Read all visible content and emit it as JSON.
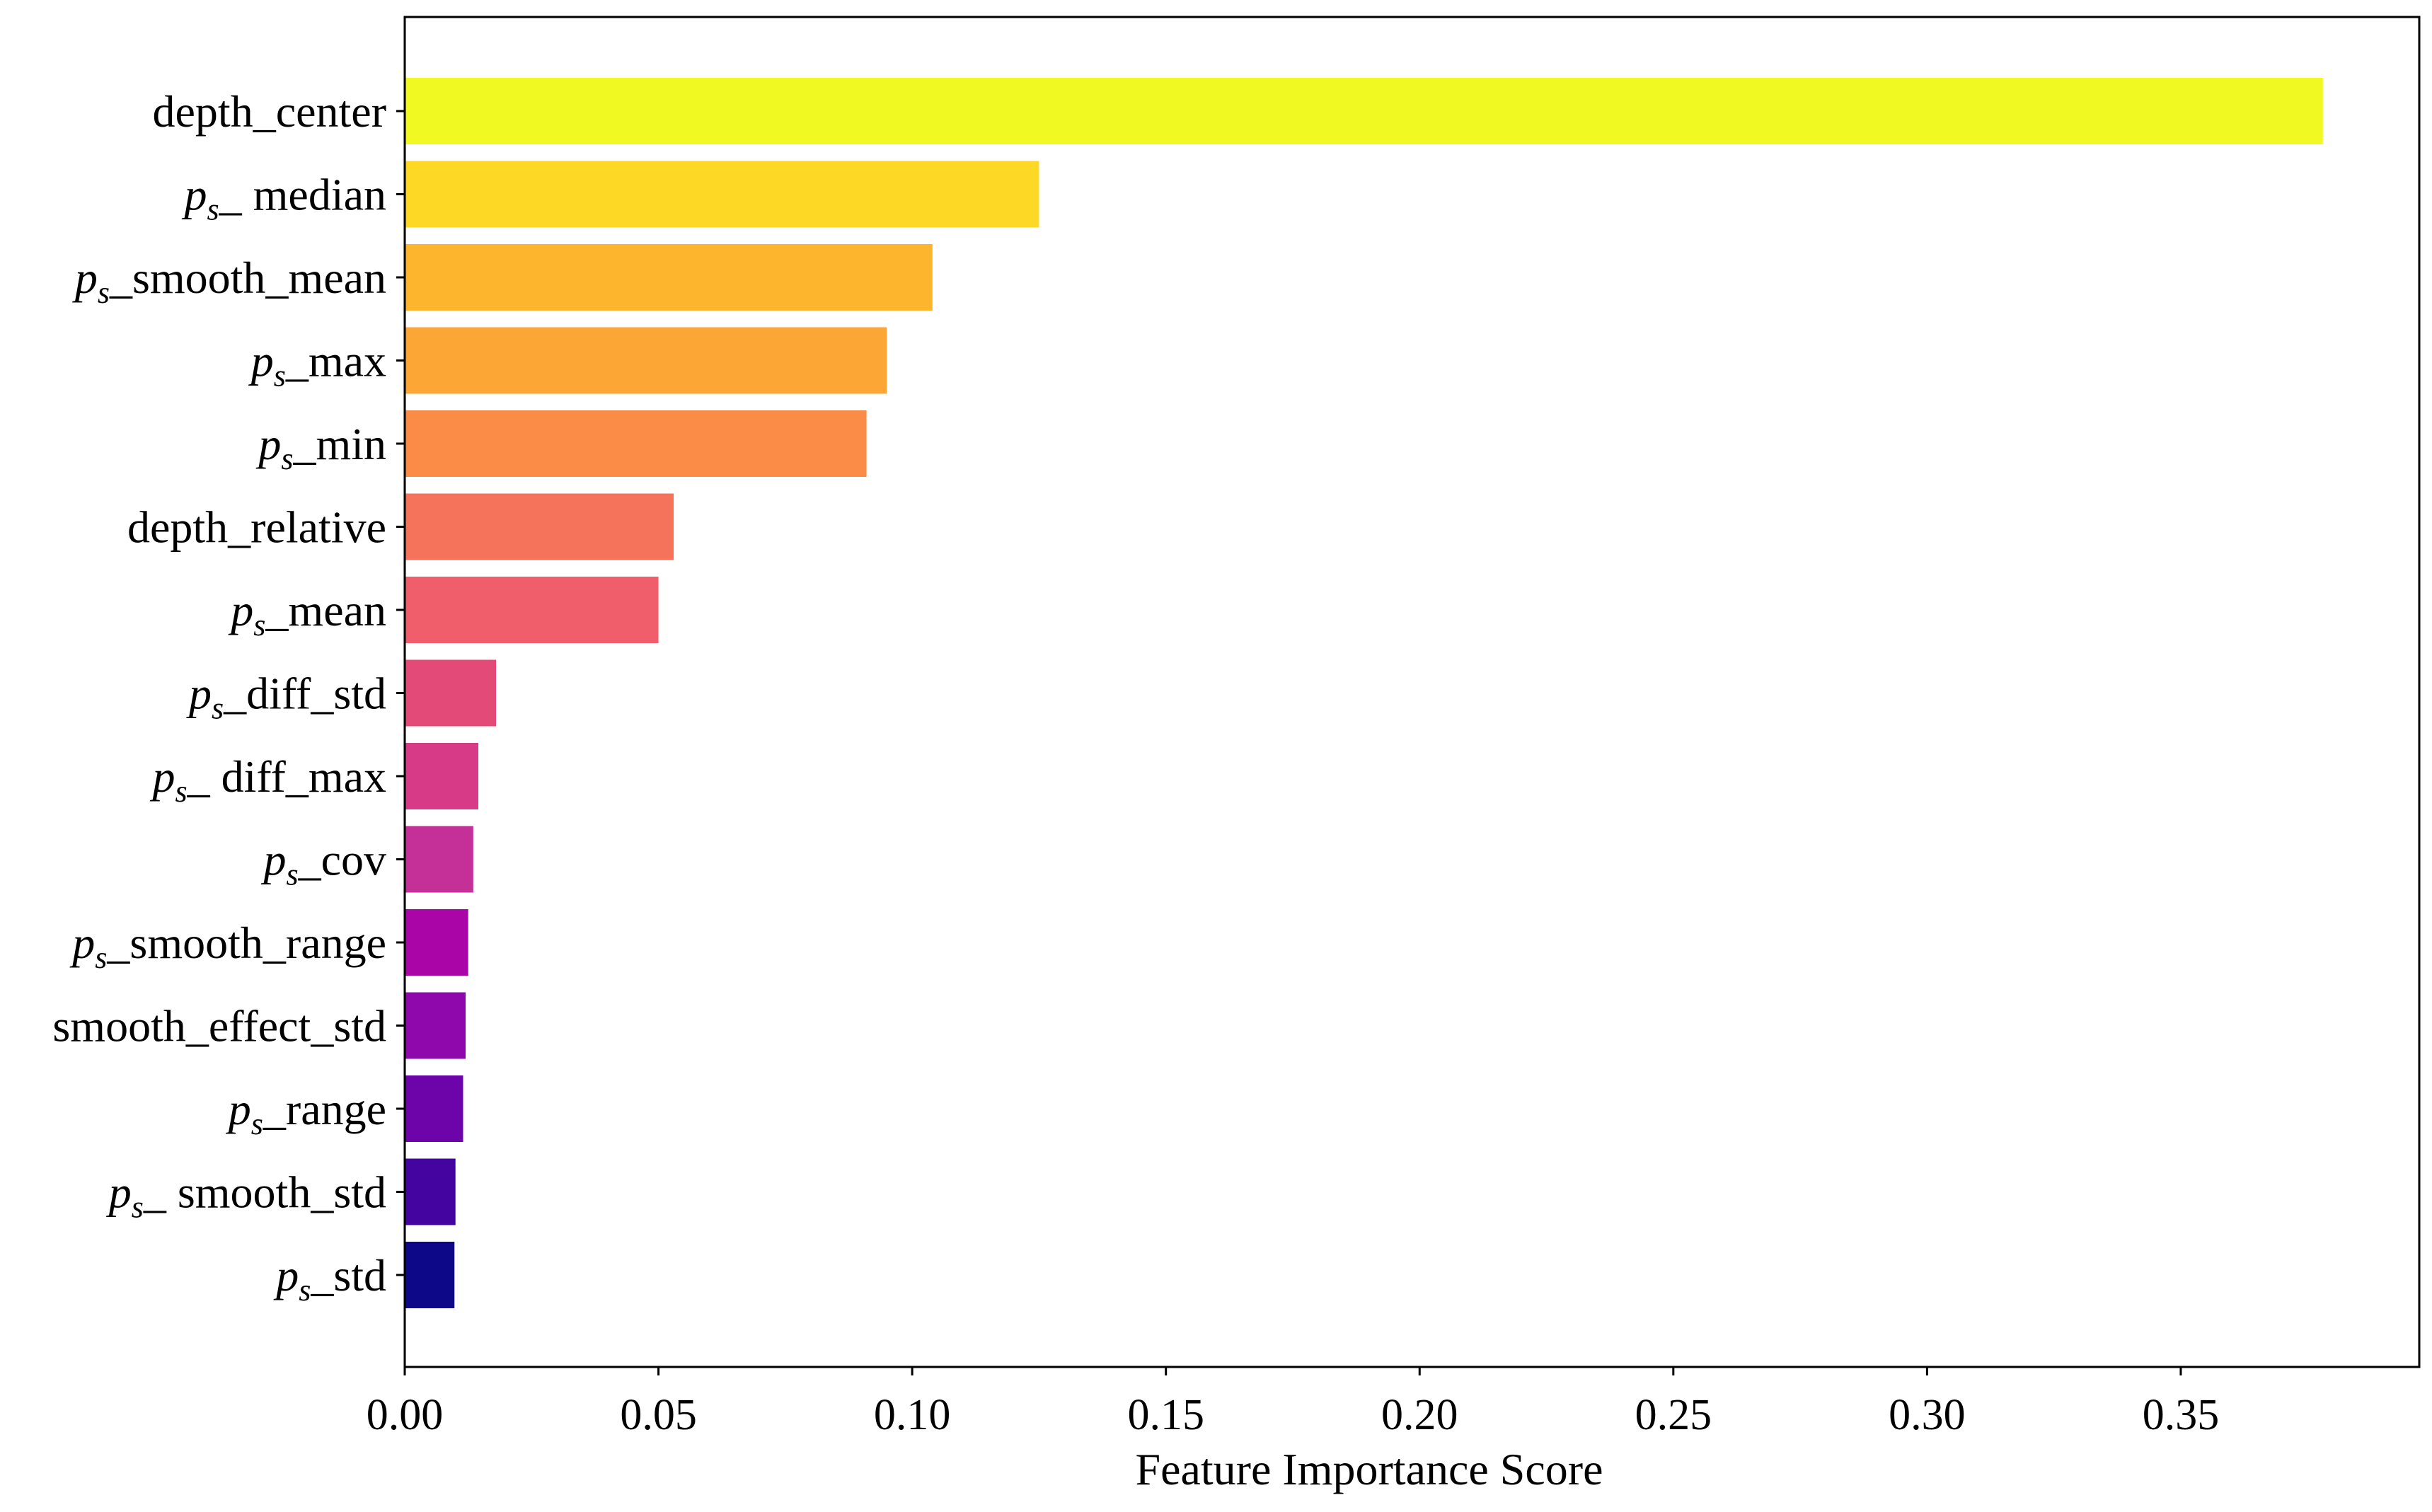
{
  "chart_data": {
    "type": "bar",
    "orientation": "horizontal",
    "xlabel": "Feature Importance Score",
    "ylabel": "",
    "xlim": [
      0,
      0.397
    ],
    "xticks": [
      "0.00",
      "0.05",
      "0.10",
      "0.15",
      "0.20",
      "0.25",
      "0.30",
      "0.35"
    ],
    "grid": false,
    "colormap": "plasma",
    "bars": [
      {
        "prefix": "",
        "sub": "",
        "suffix": "depth_center",
        "value": 0.378,
        "color": "#f0f921"
      },
      {
        "prefix": "p",
        "sub": "s",
        "suffix": "_ median",
        "value": 0.125,
        "color": "#fdd825"
      },
      {
        "prefix": "p",
        "sub": "s",
        "suffix": "_smooth_mean",
        "value": 0.104,
        "color": "#fdb52e"
      },
      {
        "prefix": "p",
        "sub": "s",
        "suffix": "_max",
        "value": 0.095,
        "color": "#fca636"
      },
      {
        "prefix": "p",
        "sub": "s",
        "suffix": "_min",
        "value": 0.091,
        "color": "#fb8c48"
      },
      {
        "prefix": "",
        "sub": "",
        "suffix": "depth_relative",
        "value": 0.053,
        "color": "#f6735b"
      },
      {
        "prefix": "p",
        "sub": "s",
        "suffix": "_mean",
        "value": 0.05,
        "color": "#ef5e6a"
      },
      {
        "prefix": "p",
        "sub": "s",
        "suffix": "_diff_std",
        "value": 0.018,
        "color": "#e34a78"
      },
      {
        "prefix": "p",
        "sub": "s",
        "suffix": "_ diff_max",
        "value": 0.0145,
        "color": "#d73a86"
      },
      {
        "prefix": "p",
        "sub": "s",
        "suffix": "_cov",
        "value": 0.0135,
        "color": "#c42f98"
      },
      {
        "prefix": "p",
        "sub": "s",
        "suffix": "_smooth_range",
        "value": 0.0125,
        "color": "#aa06a7"
      },
      {
        "prefix": "",
        "sub": "",
        "suffix": "smooth_effect_std",
        "value": 0.012,
        "color": "#8e08ac"
      },
      {
        "prefix": "p",
        "sub": "s",
        "suffix": "_range",
        "value": 0.0115,
        "color": "#6d04aa"
      },
      {
        "prefix": "p",
        "sub": "s",
        "suffix": "_ smooth_std",
        "value": 0.01,
        "color": "#4404a0"
      },
      {
        "prefix": "p",
        "sub": "s",
        "suffix": "_std",
        "value": 0.0098,
        "color": "#0d0887"
      }
    ]
  }
}
